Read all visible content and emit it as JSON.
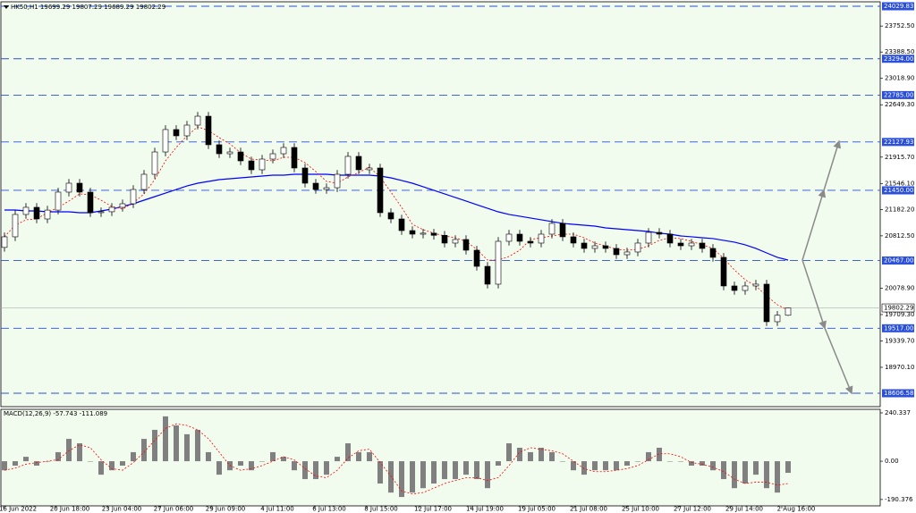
{
  "chart_data": [
    {
      "type": "candlestick",
      "title": "HK50,H1 19699.29 19807.29 19689.29 19802.29",
      "x_labels": [
        "16 Jun 2022",
        "20 Jun 18:00",
        "23 Jun 04:00",
        "27 Jun 06:00",
        "29 Jun 09:00",
        "4 Jul 11:00",
        "6 Jul 13:00",
        "8 Jul 15:00",
        "12 Jul 17:00",
        "14 Jul 19:00",
        "19 Jul 05:00",
        "21 Jul 08:00",
        "25 Jul 10:00",
        "27 Jul 12:00",
        "29 Jul 14:00",
        "2 Aug 16:00"
      ],
      "open": [
        20650,
        20799,
        21112,
        21212,
        21049,
        21173,
        21425,
        21550,
        21425,
        21137,
        21150,
        21212,
        21262,
        21462,
        21675,
        21988,
        22302,
        22214,
        22364,
        22489,
        22089,
        21963,
        21988,
        21863,
        21738,
        21888,
        21963,
        22051,
        21763,
        21550,
        21462,
        21487,
        21675,
        21926,
        21738,
        21763,
        21137,
        21049,
        20886,
        20836,
        20850,
        20820,
        20711,
        20761,
        20611,
        20385,
        20135,
        20736,
        20836,
        20736,
        20711,
        20836,
        20987,
        20799,
        20711,
        20636,
        20673,
        20636,
        20548,
        20586,
        20711,
        20861,
        20836,
        20711,
        20673,
        20711,
        20636,
        20511,
        20110,
        20047,
        20110,
        20135,
        19609,
        19699.29
      ],
      "high": [
        20859,
        21172,
        21272,
        21272,
        21233,
        21485,
        21610,
        21610,
        21485,
        21210,
        21272,
        21322,
        21522,
        21735,
        22048,
        22362,
        22362,
        22424,
        22549,
        22549,
        22149,
        22048,
        22048,
        21923,
        21948,
        22023,
        22111,
        22111,
        21823,
        21610,
        21547,
        21735,
        21986,
        21986,
        21823,
        21823,
        21197,
        21109,
        20946,
        20910,
        20910,
        20880,
        20821,
        20821,
        20671,
        20445,
        20796,
        20896,
        20896,
        20796,
        20896,
        21047,
        21047,
        20859,
        20771,
        20733,
        20733,
        20696,
        20646,
        20771,
        20921,
        20921,
        20896,
        20771,
        20771,
        20771,
        20696,
        20571,
        20170,
        20170,
        20195,
        20195,
        19759,
        19807.29
      ],
      "low": [
        20590,
        20739,
        21052,
        20989,
        20989,
        21113,
        21365,
        21365,
        21077,
        21077,
        21090,
        21152,
        21202,
        21402,
        21615,
        21928,
        22154,
        22154,
        22304,
        22029,
        21903,
        21903,
        21803,
        21678,
        21678,
        21828,
        21903,
        21703,
        21490,
        21402,
        21402,
        21427,
        21615,
        21678,
        21678,
        21077,
        20989,
        20826,
        20776,
        20776,
        20760,
        20651,
        20651,
        20551,
        20325,
        20075,
        20075,
        20676,
        20676,
        20651,
        20651,
        20776,
        20739,
        20651,
        20576,
        20576,
        20576,
        20488,
        20488,
        20526,
        20651,
        20776,
        20651,
        20613,
        20613,
        20576,
        20451,
        20050,
        19987,
        19987,
        20050,
        19549,
        19549,
        19689.29
      ],
      "close": [
        20799,
        21112,
        21212,
        21049,
        21173,
        21425,
        21550,
        21425,
        21137,
        21150,
        21212,
        21262,
        21462,
        21675,
        21988,
        22302,
        22214,
        22364,
        22489,
        22089,
        21963,
        21988,
        21863,
        21738,
        21888,
        21963,
        22051,
        21763,
        21550,
        21462,
        21487,
        21675,
        21926,
        21738,
        21763,
        21137,
        21049,
        20886,
        20836,
        20850,
        20820,
        20711,
        20761,
        20611,
        20385,
        20135,
        20736,
        20836,
        20736,
        20711,
        20836,
        20987,
        20799,
        20711,
        20636,
        20673,
        20636,
        20548,
        20586,
        20711,
        20861,
        20836,
        20711,
        20673,
        20711,
        20636,
        20511,
        20110,
        20047,
        20110,
        20135,
        19609,
        19699.29,
        19802.29
      ],
      "bull_color": "#ffffff",
      "bear_color": "#000000",
      "wick_color": "#000000",
      "ma_slow": {
        "color": "#0000ff",
        "values": [
          21174,
          21174,
          21162,
          21162,
          21149,
          21149,
          21149,
          21137,
          21137,
          21162,
          21187,
          21224,
          21262,
          21312,
          21362,
          21412,
          21462,
          21512,
          21550,
          21575,
          21600,
          21613,
          21625,
          21638,
          21650,
          21663,
          21663,
          21675,
          21675,
          21675,
          21675,
          21663,
          21663,
          21663,
          21663,
          21650,
          21625,
          21588,
          21550,
          21500,
          21450,
          21400,
          21350,
          21300,
          21249,
          21199,
          21149,
          21112,
          21087,
          21062,
          21037,
          21012,
          20987,
          20974,
          20961,
          20949,
          20924,
          20911,
          20899,
          20886,
          20874,
          20849,
          20836,
          20811,
          20799,
          20786,
          20774,
          20749,
          20724,
          20686,
          20636,
          20573,
          20511,
          20473
        ]
      },
      "ma_fast": {
        "color": "#ff0000",
        "values": [
          20799,
          20961,
          21037,
          21049,
          21137,
          21212,
          21300,
          21400,
          21387,
          21312,
          21224,
          21187,
          21274,
          21400,
          21600,
          21863,
          22051,
          22214,
          22339,
          22289,
          22189,
          22101,
          21976,
          21888,
          21876,
          21863,
          21913,
          21913,
          21838,
          21713,
          21575,
          21550,
          21638,
          21700,
          21775,
          21638,
          21425,
          21212,
          20974,
          20899,
          20849,
          20811,
          20786,
          20736,
          20623,
          20473,
          20473,
          20523,
          20611,
          20761,
          20786,
          20811,
          20836,
          20836,
          20786,
          20711,
          20673,
          20623,
          20611,
          20623,
          20673,
          20749,
          20786,
          20774,
          20736,
          20686,
          20636,
          20498,
          20335,
          20197,
          20110,
          19972,
          19847,
          19771
        ]
      },
      "ylim": [
        18418.7,
        24092.5
      ],
      "yticks": [
        {
          "value": 23752.5,
          "label": "23752.50"
        },
        {
          "value": 23388.5,
          "label": "23388.50"
        },
        {
          "value": 23018.9,
          "label": "23018.90"
        },
        {
          "value": 22649.3,
          "label": "22649.30"
        },
        {
          "value": 21915.7,
          "label": "21915.70"
        },
        {
          "value": 21546.1,
          "label": "21546.10"
        },
        {
          "value": 21182.2,
          "label": "21182.20"
        },
        {
          "value": 20812.5,
          "label": "20812.50"
        },
        {
          "value": 20078.9,
          "label": "20078.90"
        },
        {
          "value": 19709.3,
          "label": "19709.30"
        },
        {
          "value": 19339.7,
          "label": "19339.70"
        },
        {
          "value": 18970.1,
          "label": "18970.10"
        }
      ],
      "levels": [
        24029.83,
        {
          "value": 23294,
          "label": "23294.00"
        },
        {
          "value": 22785,
          "label": "22785.00"
        },
        22127.93,
        {
          "value": 21450,
          "label": "21450.00"
        },
        {
          "value": 20467,
          "label": "20467.00"
        },
        {
          "value": 19517,
          "label": "19517.00"
        },
        18606.58
      ],
      "level_color": "#2a4fd8",
      "last_price": 19802.29
    },
    {
      "type": "macd",
      "title": "MACD(12,26,9) -57.743 -111.089",
      "histogram": {
        "color": "#808080",
        "values": [
          -45,
          -22,
          22,
          -22,
          0,
          45,
          111,
          89,
          0,
          -67,
          -45,
          -22,
          45,
          111,
          156,
          223,
          178,
          134,
          156,
          45,
          -67,
          -45,
          -22,
          -45,
          0,
          45,
          22,
          -45,
          -89,
          -89,
          -67,
          22,
          89,
          45,
          45,
          -111,
          -156,
          -178,
          -156,
          -134,
          -111,
          -89,
          -89,
          -67,
          -89,
          -134,
          -22,
          89,
          67,
          45,
          67,
          45,
          0,
          -45,
          -67,
          -45,
          -45,
          -45,
          -22,
          0,
          45,
          67,
          0,
          0,
          -22,
          -22,
          -45,
          -89,
          -134,
          -111,
          -67,
          -134,
          -156,
          -57.743
        ]
      },
      "signal": {
        "color": "#ff0000",
        "values": [
          -45,
          -34,
          -15,
          -7,
          0,
          8,
          52,
          82,
          67,
          7,
          -37,
          -45,
          -7,
          45,
          104,
          163,
          186,
          178,
          156,
          112,
          45,
          -22,
          -45,
          -37,
          -22,
          0,
          22,
          7,
          -37,
          -74,
          -82,
          -45,
          15,
          52,
          60,
          -7,
          -74,
          -148,
          -163,
          -156,
          -134,
          -111,
          -96,
          -82,
          -82,
          -96,
          -82,
          -22,
          45,
          67,
          59,
          52,
          37,
          0,
          -37,
          -52,
          -52,
          -45,
          -37,
          -22,
          8,
          37,
          37,
          22,
          -7,
          -15,
          -30,
          -52,
          -89,
          -111,
          -104,
          -104,
          -119,
          -111.089
        ]
      },
      "ylim": [
        -222,
        258
      ],
      "yticks": [
        240.337,
        {
          "value": 0,
          "label": "0.00"
        },
        -190.376
      ]
    }
  ]
}
